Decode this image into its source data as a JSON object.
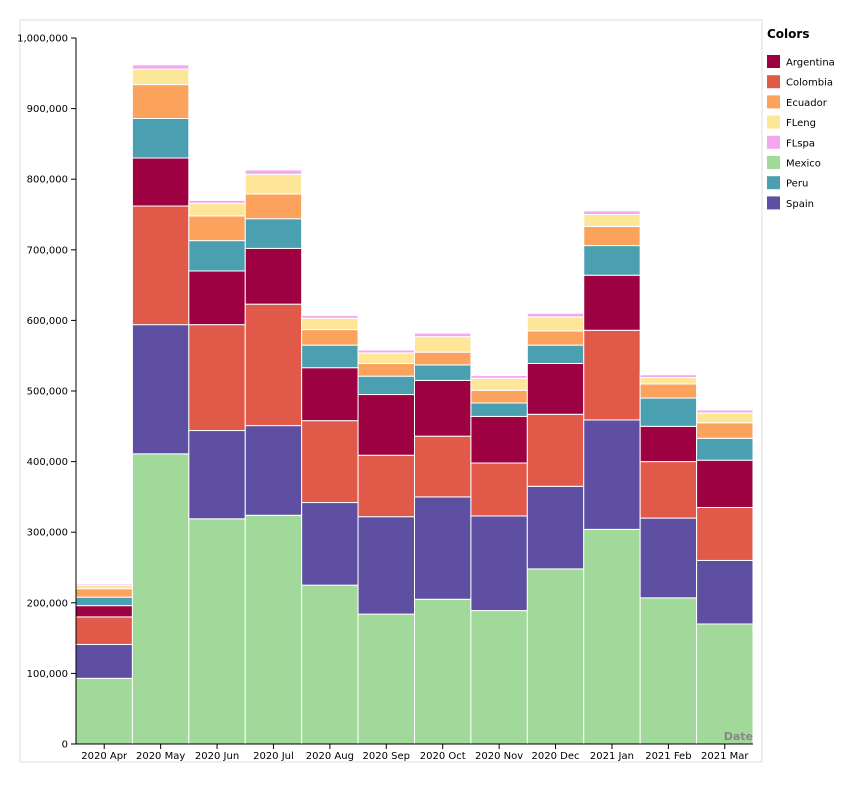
{
  "chart_data": {
    "type": "bar",
    "stacked": true,
    "categories": [
      "2020 Apr",
      "2020 May",
      "2020 Jun",
      "2020 Jul",
      "2020 Aug",
      "2020 Sep",
      "2020 Oct",
      "2020 Nov",
      "2020 Dec",
      "2021 Jan",
      "2021 Feb",
      "2021 Mar"
    ],
    "xlabel": "Date",
    "ylabel": "",
    "ylim": [
      0,
      1000000
    ],
    "yticks": [
      0,
      100000,
      200000,
      300000,
      400000,
      500000,
      600000,
      700000,
      800000,
      900000,
      1000000
    ],
    "ytick_labels": [
      "0",
      "100,000",
      "200,000",
      "300,000",
      "400,000",
      "500,000",
      "600,000",
      "700,000",
      "800,000",
      "900,000",
      "1,000,000"
    ],
    "grid": false,
    "legend": {
      "title": "Colors",
      "position": "right",
      "entries": [
        "Argentina",
        "Colombia",
        "Ecuador",
        "FLeng",
        "FLspa",
        "Mexico",
        "Peru",
        "Spain"
      ]
    },
    "stack_order": [
      "Mexico",
      "Spain",
      "Colombia",
      "Argentina",
      "Peru",
      "Ecuador",
      "FLeng",
      "FLspa"
    ],
    "series": [
      {
        "name": "Mexico",
        "color": "#a1d99b",
        "values": [
          93000,
          411000,
          319000,
          324000,
          225000,
          184000,
          205000,
          189000,
          248000,
          304000,
          207000,
          170000
        ]
      },
      {
        "name": "Spain",
        "color": "#5e4fa2",
        "values": [
          48000,
          183000,
          125000,
          127000,
          117000,
          138000,
          145000,
          134000,
          117000,
          155000,
          113000,
          90000
        ]
      },
      {
        "name": "Colombia",
        "color": "#e15949",
        "values": [
          39000,
          168000,
          150000,
          172000,
          116000,
          87000,
          86000,
          75000,
          102000,
          127000,
          80000,
          75000
        ]
      },
      {
        "name": "Argentina",
        "color": "#9e0142",
        "values": [
          16000,
          68000,
          76000,
          79000,
          75000,
          86000,
          79000,
          66000,
          72000,
          78000,
          50000,
          67000
        ]
      },
      {
        "name": "Peru",
        "color": "#4aa0b0",
        "values": [
          12000,
          56000,
          43000,
          42000,
          32000,
          26000,
          22000,
          19000,
          26000,
          42000,
          40000,
          31000
        ]
      },
      {
        "name": "Ecuador",
        "color": "#fba25c",
        "values": [
          12000,
          48000,
          35000,
          35000,
          22000,
          18000,
          18000,
          18000,
          20000,
          27000,
          20000,
          22000
        ]
      },
      {
        "name": "FLeng",
        "color": "#fee698",
        "values": [
          5000,
          22000,
          18000,
          28000,
          16000,
          15000,
          22000,
          17000,
          20000,
          17000,
          9000,
          14000
        ]
      },
      {
        "name": "FLspa",
        "color": "#f4a6ef",
        "values": [
          2000,
          6000,
          4000,
          6000,
          4000,
          4000,
          5000,
          4000,
          5000,
          5000,
          4000,
          4000
        ]
      }
    ]
  }
}
